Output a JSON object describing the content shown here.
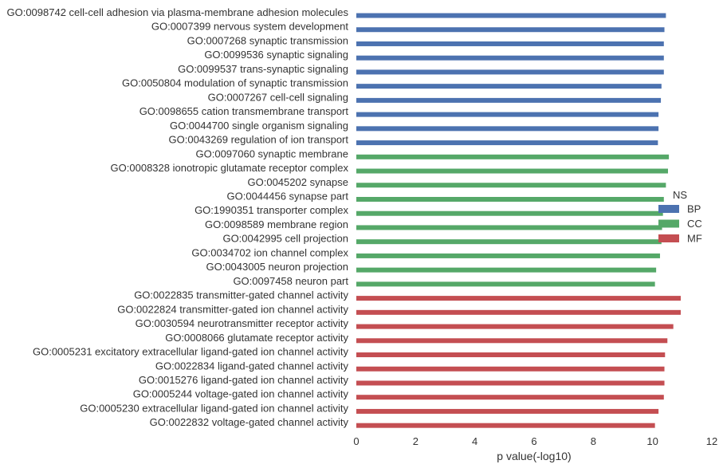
{
  "chart_data": {
    "type": "bar",
    "orientation": "horizontal",
    "xlabel": "p value(-log10)",
    "ylabel": "",
    "xlim": [
      0,
      12
    ],
    "xticks": [
      0,
      2,
      4,
      6,
      8,
      10,
      12
    ],
    "grid": false,
    "legend": {
      "title": "NS",
      "placement": "right",
      "entries": [
        {
          "name": "BP",
          "color": "#4c72b0"
        },
        {
          "name": "CC",
          "color": "#55a868"
        },
        {
          "name": "MF",
          "color": "#c44e52"
        }
      ]
    },
    "rows": [
      {
        "label": "GO:0098742 cell-cell adhesion via plasma-membrane adhesion molecules",
        "value": 10.45,
        "group": "BP"
      },
      {
        "label": "GO:0007399 nervous system development",
        "value": 10.4,
        "group": "BP"
      },
      {
        "label": "GO:0007268 synaptic transmission",
        "value": 10.38,
        "group": "BP"
      },
      {
        "label": "GO:0099536 synaptic signaling",
        "value": 10.38,
        "group": "BP"
      },
      {
        "label": "GO:0099537 trans-synaptic signaling",
        "value": 10.38,
        "group": "BP"
      },
      {
        "label": "GO:0050804 modulation of synaptic transmission",
        "value": 10.3,
        "group": "BP"
      },
      {
        "label": "GO:0007267 cell-cell signaling",
        "value": 10.28,
        "group": "BP"
      },
      {
        "label": "GO:0098655 cation transmembrane transport",
        "value": 10.2,
        "group": "BP"
      },
      {
        "label": "GO:0044700 single organism signaling",
        "value": 10.2,
        "group": "BP"
      },
      {
        "label": "GO:0043269 regulation of ion transport",
        "value": 10.18,
        "group": "BP"
      },
      {
        "label": "GO:0097060 synaptic membrane",
        "value": 10.55,
        "group": "CC"
      },
      {
        "label": "GO:0008328 ionotropic glutamate receptor complex",
        "value": 10.52,
        "group": "CC"
      },
      {
        "label": "GO:0045202 synapse",
        "value": 10.45,
        "group": "CC"
      },
      {
        "label": "GO:0044456 synapse part",
        "value": 10.38,
        "group": "CC"
      },
      {
        "label": "GO:1990351 transporter complex",
        "value": 10.35,
        "group": "CC"
      },
      {
        "label": "GO:0098589 membrane region",
        "value": 10.32,
        "group": "CC"
      },
      {
        "label": "GO:0042995 cell projection",
        "value": 10.3,
        "group": "CC"
      },
      {
        "label": "GO:0034702 ion channel complex",
        "value": 10.25,
        "group": "CC"
      },
      {
        "label": "GO:0043005 neuron projection",
        "value": 10.12,
        "group": "CC"
      },
      {
        "label": "GO:0097458 neuron part",
        "value": 10.08,
        "group": "CC"
      },
      {
        "label": "GO:0022835 transmitter-gated channel activity",
        "value": 10.95,
        "group": "MF"
      },
      {
        "label": "GO:0022824 transmitter-gated ion channel activity",
        "value": 10.95,
        "group": "MF"
      },
      {
        "label": "GO:0030594 neurotransmitter receptor activity",
        "value": 10.7,
        "group": "MF"
      },
      {
        "label": "GO:0008066 glutamate receptor activity",
        "value": 10.5,
        "group": "MF"
      },
      {
        "label": "GO:0005231 excitatory extracellular ligand-gated ion channel activity",
        "value": 10.42,
        "group": "MF"
      },
      {
        "label": "GO:0022834 ligand-gated channel activity",
        "value": 10.4,
        "group": "MF"
      },
      {
        "label": "GO:0015276 ligand-gated ion channel activity",
        "value": 10.4,
        "group": "MF"
      },
      {
        "label": "GO:0005244 voltage-gated ion channel activity",
        "value": 10.38,
        "group": "MF"
      },
      {
        "label": "GO:0005230 extracellular ligand-gated ion channel activity",
        "value": 10.2,
        "group": "MF"
      },
      {
        "label": "GO:0022832 voltage-gated channel activity",
        "value": 10.08,
        "group": "MF"
      }
    ]
  }
}
